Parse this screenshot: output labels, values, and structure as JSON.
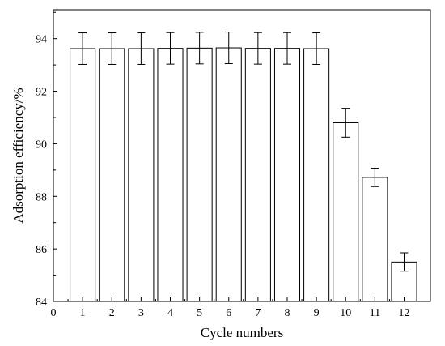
{
  "chart_data": {
    "type": "bar",
    "xlabel": "Cycle numbers",
    "ylabel": "Adsorption efficiency/%",
    "categories": [
      "1",
      "2",
      "3",
      "4",
      "5",
      "6",
      "7",
      "8",
      "9",
      "10",
      "11",
      "12"
    ],
    "values": [
      93.62,
      93.62,
      93.62,
      93.63,
      93.64,
      93.65,
      93.63,
      93.63,
      93.62,
      90.8,
      88.72,
      85.5
    ],
    "error": [
      0.6,
      0.6,
      0.6,
      0.6,
      0.6,
      0.6,
      0.6,
      0.6,
      0.6,
      0.55,
      0.35,
      0.35
    ],
    "xlim": [
      0,
      12.9
    ],
    "ylim": [
      84,
      95.1
    ],
    "x_ticks": [
      "0",
      "1",
      "2",
      "3",
      "4",
      "5",
      "6",
      "7",
      "8",
      "9",
      "10",
      "11",
      "12"
    ],
    "y_ticks": [
      84,
      86,
      88,
      90,
      92,
      94
    ],
    "grid": false,
    "legend": "none",
    "colors": {
      "bar_fill": "#ffffff",
      "bar_stroke": "#000000",
      "axis": "#000000"
    }
  }
}
